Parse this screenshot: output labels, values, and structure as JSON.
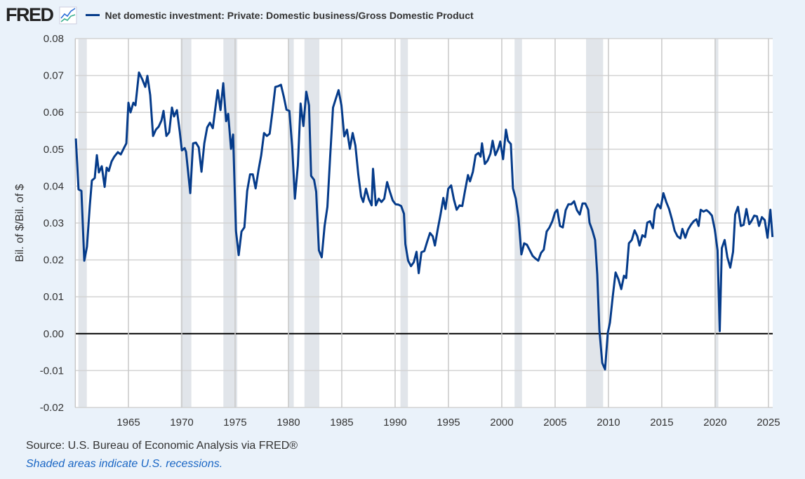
{
  "header": {
    "logo": "FRED",
    "logo_icon": "chart-line-icon"
  },
  "chart_data": {
    "type": "line",
    "title": "Net domestic investment: Private: Domestic business/Gross Domestic Product",
    "ylabel": "Bil. of $/Bil. of $",
    "xlabel": "",
    "xlim": [
      1960,
      2025.4
    ],
    "ylim": [
      -0.02,
      0.08
    ],
    "grid": true,
    "legend": "top-left",
    "line_color": "#053b8a",
    "recession_color": "#e1e5ea",
    "y_ticks": [
      "0.08",
      "0.07",
      "0.06",
      "0.05",
      "0.04",
      "0.03",
      "0.02",
      "0.01",
      "0.00",
      "-0.01",
      "-0.02"
    ],
    "y_tick_values": [
      0.08,
      0.07,
      0.06,
      0.05,
      0.04,
      0.03,
      0.02,
      0.01,
      0,
      -0.01,
      -0.02
    ],
    "x_ticks": [
      "1965",
      "1970",
      "1975",
      "1980",
      "1985",
      "1990",
      "1995",
      "2000",
      "2005",
      "2010",
      "2015",
      "2020",
      "2025"
    ],
    "recessions": [
      [
        1960.3,
        1961.1
      ],
      [
        1969.9,
        1970.9
      ],
      [
        1973.9,
        1975.2
      ],
      [
        1980.0,
        1980.5
      ],
      [
        1981.5,
        1982.9
      ],
      [
        1990.5,
        1991.2
      ],
      [
        2001.2,
        2001.9
      ],
      [
        2007.9,
        2009.5
      ],
      [
        2020.0,
        2020.3
      ]
    ],
    "series": [
      {
        "name": "Net domestic investment: Private: Domestic business/Gross Domestic Product",
        "points": [
          [
            1960.07,
            0.0529
          ],
          [
            1960.32,
            0.0391
          ],
          [
            1960.59,
            0.0387
          ],
          [
            1960.86,
            0.0198
          ],
          [
            1961.11,
            0.0236
          ],
          [
            1961.38,
            0.0348
          ],
          [
            1961.57,
            0.0415
          ],
          [
            1961.84,
            0.0422
          ],
          [
            1962.04,
            0.0484
          ],
          [
            1962.23,
            0.0437
          ],
          [
            1962.5,
            0.0454
          ],
          [
            1962.77,
            0.0398
          ],
          [
            1962.96,
            0.045
          ],
          [
            1963.16,
            0.0441
          ],
          [
            1963.42,
            0.0467
          ],
          [
            1963.68,
            0.048
          ],
          [
            1964.01,
            0.0492
          ],
          [
            1964.28,
            0.0486
          ],
          [
            1964.54,
            0.0501
          ],
          [
            1964.8,
            0.0516
          ],
          [
            1965.0,
            0.0626
          ],
          [
            1965.2,
            0.06
          ],
          [
            1965.46,
            0.0626
          ],
          [
            1965.66,
            0.0619
          ],
          [
            1965.99,
            0.0708
          ],
          [
            1966.32,
            0.0688
          ],
          [
            1966.58,
            0.0669
          ],
          [
            1966.78,
            0.0699
          ],
          [
            1967.04,
            0.0647
          ],
          [
            1967.31,
            0.0536
          ],
          [
            1967.57,
            0.0553
          ],
          [
            1967.83,
            0.0561
          ],
          [
            1968.1,
            0.0578
          ],
          [
            1968.29,
            0.0604
          ],
          [
            1968.56,
            0.0536
          ],
          [
            1968.82,
            0.0546
          ],
          [
            1969.08,
            0.0613
          ],
          [
            1969.28,
            0.0589
          ],
          [
            1969.55,
            0.0606
          ],
          [
            1969.81,
            0.0548
          ],
          [
            1970.01,
            0.0497
          ],
          [
            1970.27,
            0.0503
          ],
          [
            1970.4,
            0.0493
          ],
          [
            1970.8,
            0.0381
          ],
          [
            1971.06,
            0.0516
          ],
          [
            1971.32,
            0.0518
          ],
          [
            1971.59,
            0.0505
          ],
          [
            1971.85,
            0.0439
          ],
          [
            1972.11,
            0.0516
          ],
          [
            1972.38,
            0.0559
          ],
          [
            1972.64,
            0.0572
          ],
          [
            1972.91,
            0.0557
          ],
          [
            1973.1,
            0.06
          ],
          [
            1973.37,
            0.066
          ],
          [
            1973.63,
            0.0606
          ],
          [
            1973.89,
            0.0679
          ],
          [
            1974.16,
            0.0576
          ],
          [
            1974.35,
            0.0596
          ],
          [
            1974.62,
            0.0501
          ],
          [
            1974.81,
            0.054
          ],
          [
            1975.08,
            0.0279
          ],
          [
            1975.34,
            0.0213
          ],
          [
            1975.6,
            0.0277
          ],
          [
            1975.87,
            0.0288
          ],
          [
            1976.13,
            0.0387
          ],
          [
            1976.4,
            0.0432
          ],
          [
            1976.66,
            0.0432
          ],
          [
            1976.92,
            0.0394
          ],
          [
            1977.19,
            0.0443
          ],
          [
            1977.45,
            0.0484
          ],
          [
            1977.71,
            0.0544
          ],
          [
            1977.98,
            0.0536
          ],
          [
            1978.24,
            0.0542
          ],
          [
            1978.5,
            0.0602
          ],
          [
            1978.77,
            0.0669
          ],
          [
            1979.03,
            0.0671
          ],
          [
            1979.3,
            0.0675
          ],
          [
            1979.56,
            0.0643
          ],
          [
            1979.82,
            0.0607
          ],
          [
            1980.09,
            0.0604
          ],
          [
            1980.35,
            0.0507
          ],
          [
            1980.61,
            0.0366
          ],
          [
            1980.88,
            0.0456
          ],
          [
            1981.14,
            0.0624
          ],
          [
            1981.4,
            0.0563
          ],
          [
            1981.67,
            0.0656
          ],
          [
            1981.93,
            0.0619
          ],
          [
            1982.13,
            0.0428
          ],
          [
            1982.4,
            0.0417
          ],
          [
            1982.6,
            0.0385
          ],
          [
            1982.86,
            0.0226
          ],
          [
            1983.12,
            0.0207
          ],
          [
            1983.39,
            0.0292
          ],
          [
            1983.65,
            0.0344
          ],
          [
            1983.91,
            0.0479
          ],
          [
            1984.18,
            0.0613
          ],
          [
            1984.44,
            0.0637
          ],
          [
            1984.7,
            0.066
          ],
          [
            1984.97,
            0.0619
          ],
          [
            1985.23,
            0.0535
          ],
          [
            1985.49,
            0.0553
          ],
          [
            1985.76,
            0.0501
          ],
          [
            1986.02,
            0.0544
          ],
          [
            1986.28,
            0.051
          ],
          [
            1986.55,
            0.0432
          ],
          [
            1986.81,
            0.0372
          ],
          [
            1987.01,
            0.0357
          ],
          [
            1987.27,
            0.0393
          ],
          [
            1987.54,
            0.0364
          ],
          [
            1987.8,
            0.0348
          ],
          [
            1987.93,
            0.0447
          ],
          [
            1988.19,
            0.0348
          ],
          [
            1988.46,
            0.0366
          ],
          [
            1988.72,
            0.0357
          ],
          [
            1988.98,
            0.0366
          ],
          [
            1989.25,
            0.0411
          ],
          [
            1989.51,
            0.0385
          ],
          [
            1989.78,
            0.0361
          ],
          [
            1990.04,
            0.0351
          ],
          [
            1990.3,
            0.035
          ],
          [
            1990.57,
            0.0346
          ],
          [
            1990.83,
            0.0325
          ],
          [
            1990.96,
            0.0243
          ],
          [
            1991.22,
            0.0198
          ],
          [
            1991.49,
            0.0183
          ],
          [
            1991.75,
            0.0194
          ],
          [
            1992.01,
            0.0222
          ],
          [
            1992.21,
            0.0164
          ],
          [
            1992.47,
            0.0221
          ],
          [
            1992.74,
            0.0224
          ],
          [
            1993.0,
            0.0249
          ],
          [
            1993.27,
            0.0273
          ],
          [
            1993.53,
            0.0264
          ],
          [
            1993.73,
            0.0239
          ],
          [
            1993.99,
            0.0282
          ],
          [
            1994.26,
            0.0323
          ],
          [
            1994.52,
            0.0368
          ],
          [
            1994.72,
            0.0338
          ],
          [
            1994.98,
            0.0393
          ],
          [
            1995.25,
            0.0402
          ],
          [
            1995.51,
            0.0364
          ],
          [
            1995.77,
            0.0336
          ],
          [
            1996.04,
            0.0348
          ],
          [
            1996.3,
            0.0346
          ],
          [
            1996.56,
            0.0389
          ],
          [
            1996.83,
            0.043
          ],
          [
            1997.02,
            0.0413
          ],
          [
            1997.29,
            0.0439
          ],
          [
            1997.55,
            0.0484
          ],
          [
            1997.82,
            0.049
          ],
          [
            1998.01,
            0.048
          ],
          [
            1998.15,
            0.0516
          ],
          [
            1998.41,
            0.046
          ],
          [
            1998.67,
            0.0469
          ],
          [
            1998.94,
            0.0488
          ],
          [
            1999.14,
            0.0523
          ],
          [
            1999.4,
            0.0484
          ],
          [
            1999.66,
            0.0501
          ],
          [
            1999.86,
            0.0521
          ],
          [
            2000.12,
            0.0473
          ],
          [
            2000.39,
            0.0553
          ],
          [
            2000.58,
            0.0523
          ],
          [
            2000.85,
            0.0514
          ],
          [
            2001.05,
            0.0394
          ],
          [
            2001.31,
            0.0366
          ],
          [
            2001.57,
            0.0314
          ],
          [
            2001.84,
            0.0215
          ],
          [
            2002.1,
            0.0245
          ],
          [
            2002.36,
            0.0241
          ],
          [
            2002.63,
            0.0226
          ],
          [
            2002.89,
            0.0211
          ],
          [
            2003.15,
            0.0204
          ],
          [
            2003.42,
            0.0198
          ],
          [
            2003.68,
            0.0219
          ],
          [
            2003.94,
            0.0228
          ],
          [
            2004.21,
            0.0277
          ],
          [
            2004.47,
            0.0288
          ],
          [
            2004.74,
            0.0305
          ],
          [
            2005.0,
            0.0329
          ],
          [
            2005.2,
            0.0336
          ],
          [
            2005.46,
            0.0292
          ],
          [
            2005.72,
            0.0288
          ],
          [
            2005.99,
            0.0335
          ],
          [
            2006.25,
            0.0351
          ],
          [
            2006.52,
            0.0351
          ],
          [
            2006.78,
            0.0359
          ],
          [
            2007.04,
            0.0335
          ],
          [
            2007.31,
            0.0323
          ],
          [
            2007.57,
            0.0353
          ],
          [
            2007.83,
            0.0353
          ],
          [
            2008.1,
            0.0336
          ],
          [
            2008.23,
            0.0301
          ],
          [
            2008.49,
            0.028
          ],
          [
            2008.75,
            0.0254
          ],
          [
            2008.95,
            0.0161
          ],
          [
            2009.15,
            0.0011
          ],
          [
            2009.42,
            -0.0079
          ],
          [
            2009.68,
            -0.0097
          ],
          [
            2009.94,
            0.0002
          ],
          [
            2010.14,
            0.003
          ],
          [
            2010.41,
            0.0103
          ],
          [
            2010.67,
            0.0166
          ],
          [
            2010.93,
            0.0148
          ],
          [
            2011.2,
            0.0121
          ],
          [
            2011.46,
            0.0157
          ],
          [
            2011.66,
            0.0151
          ],
          [
            2011.92,
            0.0245
          ],
          [
            2012.19,
            0.0254
          ],
          [
            2012.45,
            0.028
          ],
          [
            2012.71,
            0.0264
          ],
          [
            2012.91,
            0.0239
          ],
          [
            2013.18,
            0.0267
          ],
          [
            2013.44,
            0.0262
          ],
          [
            2013.64,
            0.0301
          ],
          [
            2013.9,
            0.0305
          ],
          [
            2014.17,
            0.0286
          ],
          [
            2014.36,
            0.0335
          ],
          [
            2014.63,
            0.0351
          ],
          [
            2014.89,
            0.034
          ],
          [
            2015.15,
            0.0381
          ],
          [
            2015.42,
            0.0357
          ],
          [
            2015.68,
            0.0338
          ],
          [
            2015.95,
            0.031
          ],
          [
            2016.21,
            0.0279
          ],
          [
            2016.47,
            0.0264
          ],
          [
            2016.74,
            0.0258
          ],
          [
            2016.93,
            0.0284
          ],
          [
            2017.2,
            0.026
          ],
          [
            2017.46,
            0.0282
          ],
          [
            2017.73,
            0.0295
          ],
          [
            2017.99,
            0.0305
          ],
          [
            2018.25,
            0.031
          ],
          [
            2018.45,
            0.0292
          ],
          [
            2018.65,
            0.0336
          ],
          [
            2018.91,
            0.0331
          ],
          [
            2019.18,
            0.0335
          ],
          [
            2019.44,
            0.0329
          ],
          [
            2019.7,
            0.032
          ],
          [
            2019.97,
            0.0282
          ],
          [
            2020.23,
            0.0226
          ],
          [
            2020.43,
            0.0007
          ],
          [
            2020.63,
            0.0232
          ],
          [
            2020.89,
            0.0254
          ],
          [
            2021.15,
            0.0207
          ],
          [
            2021.42,
            0.0179
          ],
          [
            2021.68,
            0.0222
          ],
          [
            2021.88,
            0.0323
          ],
          [
            2022.14,
            0.0344
          ],
          [
            2022.41,
            0.0292
          ],
          [
            2022.67,
            0.0295
          ],
          [
            2022.93,
            0.0338
          ],
          [
            2023.2,
            0.0297
          ],
          [
            2023.4,
            0.0305
          ],
          [
            2023.66,
            0.032
          ],
          [
            2023.92,
            0.0318
          ],
          [
            2024.12,
            0.0292
          ],
          [
            2024.39,
            0.0316
          ],
          [
            2024.65,
            0.0308
          ],
          [
            2024.91,
            0.026
          ],
          [
            2025.18,
            0.0336
          ],
          [
            2025.38,
            0.0262
          ]
        ]
      }
    ]
  },
  "footer": {
    "source": "Source: U.S. Bureau of Economic Analysis via FRED®",
    "note": "Shaded areas indicate U.S. recessions."
  }
}
